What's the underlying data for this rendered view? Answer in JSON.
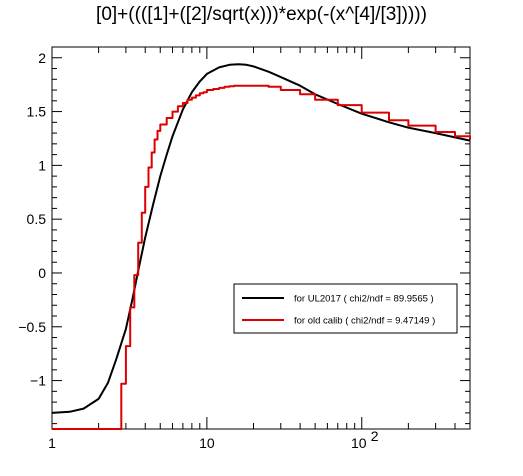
{
  "chart_data": {
    "type": "line",
    "title": "[0]+((([1]+([2]/sqrt(x)))*exp(-(x^[4]/[3]))))",
    "x_scale": "log",
    "xlim": [
      1,
      500
    ],
    "ylim": [
      -1.45,
      2.1
    ],
    "x_ticks": [
      {
        "value": 1,
        "label": "1"
      },
      {
        "value": 10,
        "label": "10"
      },
      {
        "value": 100,
        "label": "10",
        "exponent": "2"
      }
    ],
    "y_ticks": [
      {
        "value": -1,
        "label": "−1"
      },
      {
        "value": -0.5,
        "label": "−0.5"
      },
      {
        "value": 0,
        "label": "0"
      },
      {
        "value": 0.5,
        "label": "0.5"
      },
      {
        "value": 1,
        "label": "1"
      },
      {
        "value": 1.5,
        "label": "1.5"
      },
      {
        "value": 2,
        "label": "2"
      }
    ],
    "grid": false,
    "legend_position": "center-right",
    "series": [
      {
        "name": "for UL2017 ( chi2/ndf = 89.9565 )",
        "color": "#000000",
        "style": "smooth",
        "x": [
          1.0,
          1.3,
          1.6,
          2.0,
          2.3,
          2.6,
          3.0,
          3.3,
          3.6,
          4.0,
          4.5,
          5.0,
          5.5,
          6.0,
          7.0,
          8.0,
          9.0,
          10.0,
          12.0,
          14.0,
          16.0,
          18.0,
          20.0,
          25.0,
          30.0,
          40.0,
          50.0,
          70.0,
          100.0,
          150.0,
          200.0,
          300.0,
          400.0,
          500.0
        ],
        "y": [
          -1.3,
          -1.29,
          -1.26,
          -1.17,
          -1.02,
          -0.8,
          -0.52,
          -0.25,
          0.02,
          0.33,
          0.64,
          0.9,
          1.1,
          1.27,
          1.52,
          1.68,
          1.78,
          1.85,
          1.91,
          1.935,
          1.94,
          1.935,
          1.92,
          1.87,
          1.82,
          1.74,
          1.66,
          1.57,
          1.48,
          1.4,
          1.35,
          1.3,
          1.26,
          1.23
        ]
      },
      {
        "name": "for old calib ( chi2/ndf = 9.47149 )",
        "color": "#dd0000",
        "style": "step",
        "x": [
          1.0,
          2.8,
          3.0,
          3.2,
          3.4,
          3.6,
          3.8,
          4.0,
          4.2,
          4.4,
          4.6,
          4.8,
          5.0,
          5.5,
          6.0,
          6.5,
          7.0,
          7.5,
          8.0,
          8.5,
          9.0,
          9.5,
          10.0,
          11.0,
          12.0,
          13.0,
          14.0,
          15.0,
          16.0,
          20.0,
          25.0,
          30.0,
          40.0,
          50.0,
          70.0,
          100.0,
          150.0,
          200.0,
          300.0,
          400.0,
          500.0
        ],
        "y": [
          -1.45,
          -1.03,
          -0.68,
          -0.32,
          -0.02,
          0.28,
          0.56,
          0.8,
          0.98,
          1.12,
          1.24,
          1.32,
          1.38,
          1.44,
          1.5,
          1.55,
          1.58,
          1.61,
          1.63,
          1.65,
          1.67,
          1.68,
          1.7,
          1.71,
          1.72,
          1.73,
          1.735,
          1.74,
          1.74,
          1.74,
          1.73,
          1.7,
          1.66,
          1.61,
          1.56,
          1.49,
          1.42,
          1.37,
          1.31,
          1.27,
          1.24
        ]
      }
    ]
  }
}
